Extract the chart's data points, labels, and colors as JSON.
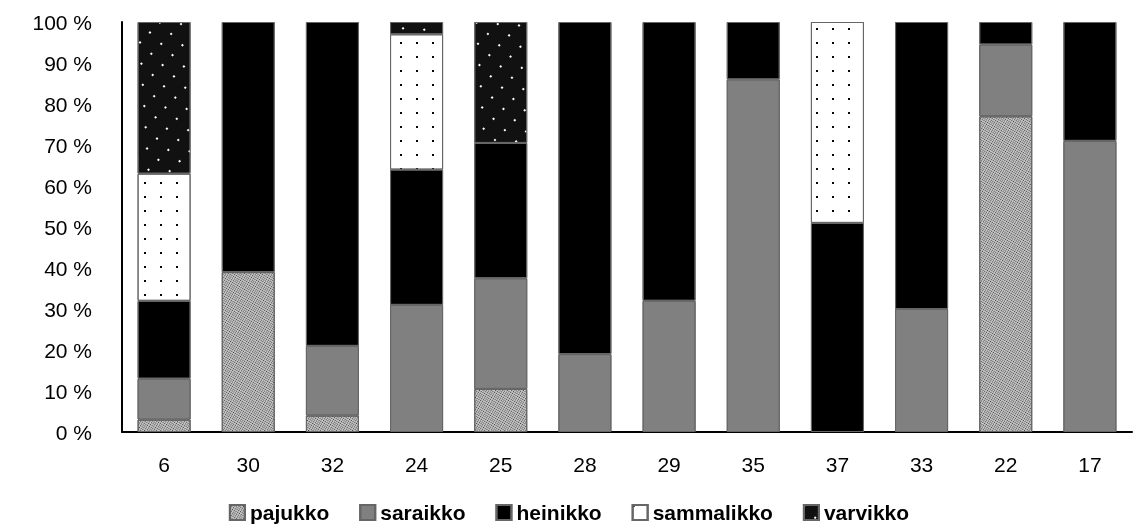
{
  "chart_data": {
    "type": "bar",
    "stacked": true,
    "categories": [
      "6",
      "30",
      "32",
      "24",
      "25",
      "28",
      "29",
      "35",
      "37",
      "33",
      "22",
      "17"
    ],
    "series": [
      {
        "name": "pajukko",
        "color": "#c8c8c8",
        "values": [
          3,
          39,
          4,
          0,
          10.5,
          0,
          0,
          0,
          0,
          0,
          77,
          0
        ]
      },
      {
        "name": "saraikko",
        "color": "#808080",
        "values": [
          10,
          0,
          17,
          31,
          27,
          19,
          32,
          86,
          0,
          30,
          17.5,
          71
        ]
      },
      {
        "name": "heinikko",
        "color": "#000000",
        "values": [
          19,
          61,
          79,
          33,
          33,
          81,
          68,
          14,
          51,
          70,
          5.5,
          29
        ]
      },
      {
        "name": "sammalikko",
        "color": "#ffffff",
        "values": [
          31,
          0,
          0,
          33,
          0,
          0,
          0,
          0,
          49,
          0,
          0,
          0
        ]
      },
      {
        "name": "varvikko",
        "color": "#111111",
        "values": [
          37,
          0,
          0,
          3,
          29.5,
          0,
          0,
          0,
          0,
          0,
          0,
          0
        ]
      }
    ],
    "ylim": [
      0,
      100
    ],
    "yticks": [
      {
        "value": 0,
        "label": "0 %"
      },
      {
        "value": 10,
        "label": "10 %"
      },
      {
        "value": 20,
        "label": "20 %"
      },
      {
        "value": 30,
        "label": "30 %"
      },
      {
        "value": 40,
        "label": "40 %"
      },
      {
        "value": 50,
        "label": "50 %"
      },
      {
        "value": 60,
        "label": "60 %"
      },
      {
        "value": 70,
        "label": "70 %"
      },
      {
        "value": 80,
        "label": "80 %"
      },
      {
        "value": 90,
        "label": "90 %"
      },
      {
        "value": 100,
        "label": "100 %"
      }
    ],
    "grid": false,
    "legend": "bottom"
  }
}
